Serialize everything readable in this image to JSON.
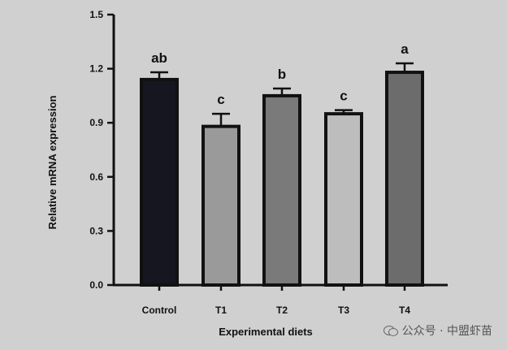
{
  "chart_data": {
    "type": "bar",
    "categories": [
      "Control",
      "T1",
      "T2",
      "T3",
      "T4"
    ],
    "values": [
      1.14,
      0.88,
      1.05,
      0.95,
      1.18
    ],
    "errors": [
      0.04,
      0.07,
      0.04,
      0.02,
      0.05
    ],
    "significance": [
      "ab",
      "c",
      "b",
      "c",
      "a"
    ],
    "bar_colors": [
      "#15161f",
      "#9a9a9a",
      "#7a7a7a",
      "#bdbdbd",
      "#6c6c6c"
    ],
    "xlabel": "Experimental diets",
    "ylabel": "Relative mRNA expression",
    "ylim": [
      0,
      1.5
    ],
    "yticks": [
      "0.0",
      "0.3",
      "0.6",
      "0.9",
      "1.2",
      "1.5"
    ],
    "grid": false,
    "background": "#d0d0d0"
  },
  "watermark": {
    "text": "公众号 · 中盟虾苗",
    "icon": "wechat-icon"
  }
}
